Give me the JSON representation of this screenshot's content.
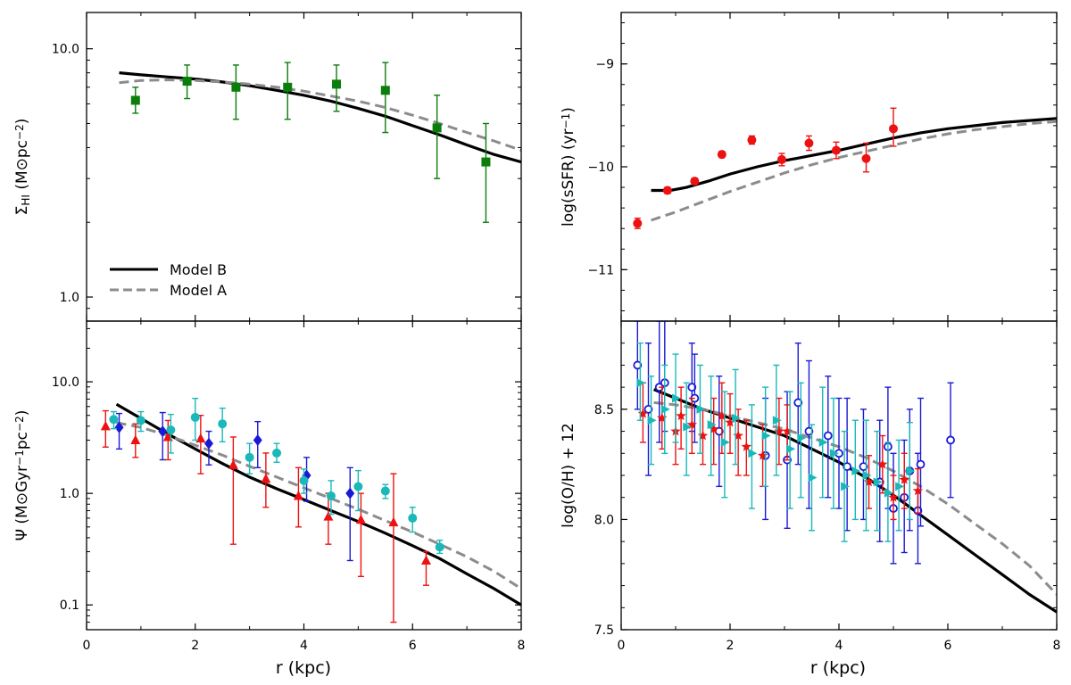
{
  "x_axis": {
    "label": "r (kpc)",
    "ticks": [
      {
        "v": 0,
        "label": "0"
      },
      {
        "v": 2,
        "label": "2"
      },
      {
        "v": 4,
        "label": "4"
      },
      {
        "v": 6,
        "label": "6"
      },
      {
        "v": 8,
        "label": "8"
      }
    ],
    "range": [
      0,
      8
    ]
  },
  "legend": {
    "placement": "lower-left",
    "entries": [
      {
        "label": "Model B",
        "style": "solid",
        "color": "#000000"
      },
      {
        "label": "Model A",
        "style": "dashed",
        "color": "#8c8c8c"
      }
    ]
  },
  "colors": {
    "model_b": "#000000",
    "model_a": "#8c8c8c",
    "green": "#0a7d0a",
    "red": "#ee1111",
    "blue": "#1a1ad6",
    "cyan": "#1ab8b8"
  },
  "chart_data": [
    {
      "id": "hi",
      "type": "scatter",
      "ylabel": "Σ_HI (M⊙pc⁻²)",
      "yscale": "log",
      "xlim": [
        0,
        8
      ],
      "ylim": [
        0.8,
        14.0
      ],
      "yticks": [
        {
          "v": 1.0,
          "label": "1.0"
        },
        {
          "v": 10.0,
          "label": "10.0"
        }
      ],
      "lines": [
        {
          "name": "Model B",
          "x": [
            0.6,
            1.0,
            1.5,
            2.0,
            2.5,
            3.0,
            3.5,
            4.0,
            4.5,
            5.0,
            5.5,
            6.0,
            6.5,
            7.0,
            7.5,
            8.0
          ],
          "y": [
            8.0,
            7.85,
            7.7,
            7.55,
            7.35,
            7.1,
            6.8,
            6.5,
            6.15,
            5.75,
            5.35,
            4.9,
            4.5,
            4.1,
            3.75,
            3.5
          ]
        },
        {
          "name": "Model A",
          "x": [
            0.6,
            1.0,
            1.5,
            2.0,
            2.5,
            3.0,
            3.5,
            4.0,
            4.5,
            5.0,
            5.5,
            6.0,
            6.5,
            7.0,
            7.5,
            8.0
          ],
          "y": [
            7.3,
            7.45,
            7.5,
            7.45,
            7.35,
            7.2,
            7.0,
            6.75,
            6.45,
            6.15,
            5.8,
            5.4,
            5.0,
            4.6,
            4.25,
            3.9
          ]
        }
      ],
      "series": [
        {
          "marker": "square",
          "color": "#0a7d0a",
          "x": [
            0.9,
            1.85,
            2.75,
            3.7,
            4.6,
            5.5,
            6.45,
            7.35
          ],
          "y": [
            6.2,
            7.4,
            7.0,
            7.0,
            7.2,
            6.8,
            4.8,
            3.5
          ],
          "ylo": [
            5.5,
            6.3,
            5.2,
            5.2,
            5.6,
            4.6,
            3.0,
            2.0
          ],
          "yhi": [
            7.0,
            8.6,
            8.6,
            8.8,
            8.6,
            8.8,
            6.5,
            5.0
          ]
        }
      ]
    },
    {
      "id": "ssfr",
      "type": "scatter",
      "ylabel": "log(sSFR) (yr⁻¹)",
      "yscale": "linear",
      "xlim": [
        0,
        8
      ],
      "ylim": [
        -11.5,
        -8.5
      ],
      "yticks": [
        {
          "v": -9,
          "label": "−9"
        },
        {
          "v": -10,
          "label": "−10"
        },
        {
          "v": -11,
          "label": "−11"
        }
      ],
      "lines": [
        {
          "name": "Model B",
          "x": [
            0.55,
            0.9,
            1.2,
            1.6,
            2.0,
            2.5,
            3.0,
            3.5,
            4.0,
            4.5,
            5.0,
            5.5,
            6.0,
            6.5,
            7.0,
            7.5,
            8.0
          ],
          "y": [
            -10.23,
            -10.23,
            -10.2,
            -10.14,
            -10.07,
            -10.0,
            -9.94,
            -9.89,
            -9.84,
            -9.78,
            -9.72,
            -9.67,
            -9.63,
            -9.6,
            -9.57,
            -9.55,
            -9.53
          ]
        },
        {
          "name": "Model A",
          "x": [
            0.55,
            1.0,
            1.5,
            2.0,
            2.5,
            3.0,
            3.5,
            4.0,
            4.5,
            5.0,
            5.5,
            6.0,
            6.5,
            7.0,
            7.5,
            8.0
          ],
          "y": [
            -10.52,
            -10.44,
            -10.34,
            -10.24,
            -10.15,
            -10.06,
            -9.98,
            -9.91,
            -9.85,
            -9.79,
            -9.73,
            -9.68,
            -9.64,
            -9.61,
            -9.58,
            -9.56
          ]
        }
      ],
      "series": [
        {
          "marker": "circle",
          "color": "#ee1111",
          "x": [
            0.3,
            0.85,
            1.35,
            1.85,
            2.4,
            2.95,
            3.45,
            3.95,
            4.5,
            5.0
          ],
          "y": [
            -10.55,
            -10.23,
            -10.14,
            -9.88,
            -9.74,
            -9.93,
            -9.77,
            -9.84,
            -9.92,
            -9.63
          ],
          "ylo": [
            -10.6,
            -10.26,
            -10.17,
            -9.91,
            -9.78,
            -9.99,
            -9.84,
            -9.92,
            -10.05,
            -9.8
          ],
          "yhi": [
            -10.5,
            -10.2,
            -10.11,
            -9.85,
            -9.7,
            -9.87,
            -9.7,
            -9.76,
            -9.77,
            -9.43
          ]
        }
      ]
    },
    {
      "id": "psi",
      "type": "scatter",
      "ylabel": "Ψ (M⊙Gyr⁻¹pc⁻²)",
      "yscale": "log",
      "xlim": [
        0,
        8
      ],
      "ylim": [
        0.06,
        35.0
      ],
      "yticks": [
        {
          "v": 0.1,
          "label": "0.1"
        },
        {
          "v": 1.0,
          "label": "1.0"
        },
        {
          "v": 10.0,
          "label": "10.0"
        }
      ],
      "lines": [
        {
          "name": "Model B",
          "x": [
            0.55,
            1.0,
            1.5,
            2.0,
            2.5,
            3.0,
            3.5,
            4.0,
            4.5,
            5.0,
            5.5,
            6.0,
            6.5,
            7.0,
            7.5,
            8.0
          ],
          "y": [
            6.3,
            4.7,
            3.4,
            2.5,
            1.85,
            1.4,
            1.1,
            0.88,
            0.7,
            0.56,
            0.44,
            0.34,
            0.26,
            0.19,
            0.14,
            0.1
          ]
        },
        {
          "name": "Model A",
          "x": [
            0.55,
            1.0,
            1.5,
            2.0,
            2.5,
            3.0,
            3.5,
            4.0,
            4.5,
            5.0,
            5.5,
            6.0,
            6.5,
            7.0,
            7.5,
            8.0
          ],
          "y": [
            4.3,
            3.9,
            3.3,
            2.7,
            2.2,
            1.75,
            1.4,
            1.12,
            0.9,
            0.72,
            0.57,
            0.45,
            0.35,
            0.27,
            0.2,
            0.14
          ]
        }
      ],
      "series": [
        {
          "marker": "triangle",
          "color": "#ee1111",
          "x": [
            0.35,
            0.9,
            1.5,
            2.1,
            2.7,
            3.3,
            3.9,
            4.45,
            5.05,
            5.65,
            6.25
          ],
          "y": [
            4.0,
            3.0,
            3.2,
            3.1,
            1.8,
            1.35,
            0.95,
            0.62,
            0.58,
            0.55,
            0.25
          ],
          "ylo": [
            2.6,
            2.1,
            2.0,
            1.5,
            0.35,
            0.75,
            0.5,
            0.35,
            0.18,
            0.07,
            0.15
          ],
          "yhi": [
            5.5,
            4.2,
            4.5,
            5.0,
            3.2,
            2.3,
            1.7,
            1.0,
            1.0,
            1.5,
            0.3
          ]
        },
        {
          "marker": "diamond",
          "color": "#1a1ad6",
          "x": [
            0.6,
            1.4,
            2.25,
            3.15,
            4.05,
            4.85
          ],
          "y": [
            3.9,
            3.6,
            2.8,
            3.0,
            1.45,
            1.0
          ],
          "ylo": [
            2.5,
            2.0,
            1.8,
            1.7,
            0.85,
            0.25
          ],
          "yhi": [
            5.2,
            5.3,
            3.6,
            4.4,
            2.1,
            1.7
          ]
        },
        {
          "marker": "circle",
          "color": "#1ab8b8",
          "x": [
            0.5,
            1.0,
            1.55,
            2.0,
            2.5,
            3.0,
            3.5,
            4.0,
            4.5,
            5.0,
            5.5,
            6.0,
            6.5
          ],
          "y": [
            4.6,
            4.5,
            3.7,
            4.8,
            4.2,
            2.1,
            2.3,
            1.3,
            0.95,
            1.15,
            1.05,
            0.6,
            0.33
          ],
          "ylo": [
            3.8,
            3.6,
            2.3,
            3.0,
            2.9,
            1.5,
            1.9,
            1.0,
            0.65,
            0.7,
            0.9,
            0.45,
            0.29
          ],
          "yhi": [
            5.4,
            5.4,
            5.1,
            7.1,
            5.8,
            2.8,
            2.8,
            1.65,
            1.3,
            1.6,
            1.2,
            0.75,
            0.38
          ]
        }
      ]
    },
    {
      "id": "oh",
      "type": "scatter",
      "ylabel": "log(O/H) + 12",
      "yscale": "linear",
      "xlim": [
        0,
        8
      ],
      "ylim": [
        7.5,
        8.9
      ],
      "yticks": [
        {
          "v": 7.5,
          "label": "7.5"
        },
        {
          "v": 8.0,
          "label": "8.0"
        },
        {
          "v": 8.5,
          "label": "8.5"
        }
      ],
      "lines": [
        {
          "name": "Model B",
          "x": [
            0.6,
            1.0,
            1.5,
            2.0,
            2.5,
            3.0,
            3.5,
            4.0,
            4.5,
            5.0,
            5.5,
            6.0,
            6.5,
            7.0,
            7.5,
            8.0
          ],
          "y": [
            8.59,
            8.55,
            8.5,
            8.46,
            8.42,
            8.38,
            8.32,
            8.26,
            8.19,
            8.11,
            8.02,
            7.93,
            7.84,
            7.75,
            7.66,
            7.58
          ]
        },
        {
          "name": "Model A",
          "x": [
            0.6,
            1.0,
            1.5,
            2.0,
            2.5,
            3.0,
            3.5,
            4.0,
            4.5,
            5.0,
            5.5,
            6.0,
            6.5,
            7.0,
            7.5,
            8.0
          ],
          "y": [
            8.53,
            8.52,
            8.5,
            8.47,
            8.44,
            8.41,
            8.37,
            8.33,
            8.28,
            8.22,
            8.15,
            8.07,
            7.98,
            7.89,
            7.79,
            7.66
          ]
        }
      ],
      "series": [
        {
          "marker": "open-circle",
          "color": "#1a1ad6",
          "x": [
            0.3,
            0.5,
            0.7,
            0.8,
            1.3,
            1.35,
            1.8,
            2.65,
            3.05,
            3.25,
            3.45,
            3.8,
            4.0,
            4.15,
            4.45,
            4.75,
            4.9,
            5.0,
            5.2,
            5.3,
            5.45,
            5.5,
            6.05
          ],
          "y": [
            8.7,
            8.5,
            8.6,
            8.62,
            8.6,
            8.55,
            8.4,
            8.29,
            8.27,
            8.53,
            8.4,
            8.38,
            8.3,
            8.24,
            8.24,
            8.17,
            8.33,
            8.05,
            8.1,
            8.22,
            8.04,
            8.25,
            8.36
          ],
          "ylo": [
            8.5,
            8.2,
            8.35,
            8.4,
            8.4,
            8.35,
            8.15,
            8.0,
            7.96,
            8.25,
            8.05,
            8.1,
            8.05,
            7.95,
            8.0,
            7.9,
            8.05,
            7.8,
            7.85,
            7.95,
            7.8,
            7.97,
            8.1
          ],
          "yhi": [
            8.9,
            8.8,
            8.9,
            8.9,
            8.8,
            8.75,
            8.65,
            8.55,
            8.58,
            8.8,
            8.72,
            8.65,
            8.55,
            8.55,
            8.5,
            8.45,
            8.6,
            8.3,
            8.36,
            8.5,
            8.3,
            8.55,
            8.62
          ]
        },
        {
          "marker": "star",
          "color": "#ee1111",
          "x": [
            0.4,
            0.75,
            1.0,
            1.1,
            1.3,
            1.5,
            1.7,
            1.85,
            2.0,
            2.15,
            2.3,
            2.6,
            2.9,
            3.05,
            4.55,
            4.8,
            5.0,
            5.2,
            5.45
          ],
          "y": [
            8.48,
            8.46,
            8.4,
            8.47,
            8.43,
            8.38,
            8.41,
            8.47,
            8.44,
            8.38,
            8.33,
            8.29,
            8.4,
            8.4,
            8.17,
            8.25,
            8.1,
            8.18,
            8.13
          ],
          "ylo": [
            8.35,
            8.32,
            8.25,
            8.32,
            8.3,
            8.25,
            8.25,
            8.3,
            8.3,
            8.2,
            8.2,
            8.15,
            8.25,
            8.27,
            8.05,
            8.12,
            8.0,
            8.05,
            8.03
          ],
          "yhi": [
            8.62,
            8.6,
            8.55,
            8.6,
            8.55,
            8.5,
            8.55,
            8.62,
            8.57,
            8.5,
            8.45,
            8.43,
            8.55,
            8.52,
            8.29,
            8.38,
            8.2,
            8.3,
            8.23
          ]
        },
        {
          "marker": "right-triangle",
          "color": "#1ab8b8",
          "x": [
            0.35,
            0.55,
            0.8,
            1.0,
            1.2,
            1.45,
            1.65,
            1.9,
            2.1,
            2.4,
            2.65,
            2.85,
            3.1,
            3.3,
            3.5,
            3.7,
            3.9,
            4.1,
            4.3,
            4.5,
            4.7,
            4.9,
            5.1,
            5.3
          ],
          "y": [
            8.62,
            8.45,
            8.5,
            8.55,
            8.42,
            8.5,
            8.43,
            8.35,
            8.46,
            8.3,
            8.38,
            8.45,
            8.32,
            8.37,
            8.19,
            8.35,
            8.3,
            8.15,
            8.22,
            8.2,
            8.17,
            8.12,
            8.15,
            8.22
          ],
          "ylo": [
            8.45,
            8.25,
            8.3,
            8.35,
            8.2,
            8.3,
            8.2,
            8.1,
            8.25,
            8.05,
            8.15,
            8.2,
            8.05,
            8.1,
            7.95,
            8.1,
            8.05,
            7.9,
            8.0,
            7.95,
            7.95,
            7.9,
            7.95,
            8.0
          ],
          "yhi": [
            8.8,
            8.65,
            8.7,
            8.75,
            8.62,
            8.7,
            8.65,
            8.58,
            8.68,
            8.52,
            8.6,
            8.7,
            8.58,
            8.62,
            8.43,
            8.6,
            8.55,
            8.4,
            8.45,
            8.45,
            8.4,
            8.35,
            8.36,
            8.44
          ]
        }
      ]
    }
  ]
}
